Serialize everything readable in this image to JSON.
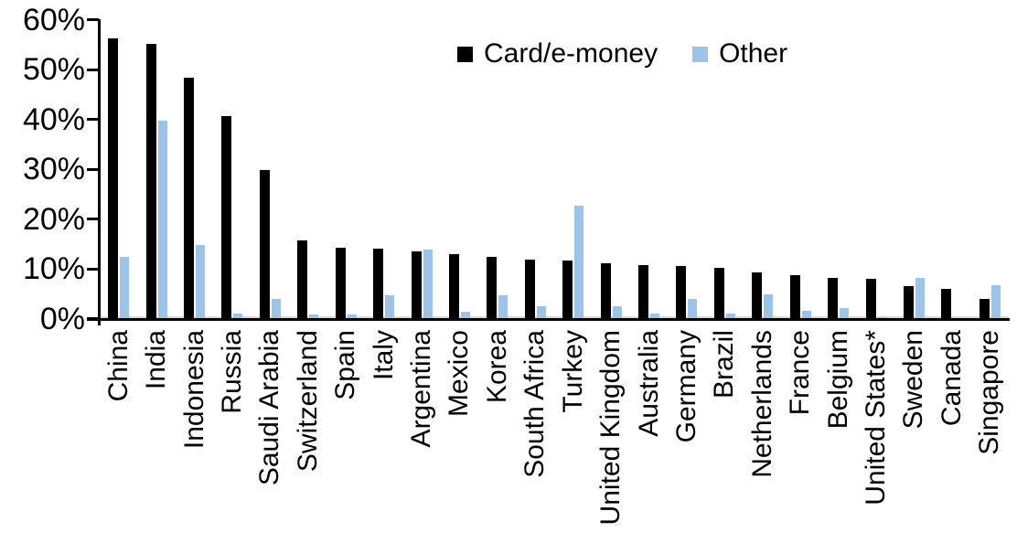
{
  "chart_data": {
    "type": "bar",
    "title": "",
    "xlabel": "",
    "ylabel": "",
    "ylim": [
      0,
      60
    ],
    "ytick_step": 10,
    "ytick_labels": [
      "0%",
      "10%",
      "20%",
      "30%",
      "40%",
      "50%",
      "60%"
    ],
    "grid": false,
    "legend_position": "top-center",
    "categories": [
      "China",
      "India",
      "Indonesia",
      "Russia",
      "Saudi Arabia",
      "Switzerland",
      "Spain",
      "Italy",
      "Argentina",
      "Mexico",
      "Korea",
      "South Africa",
      "Turkey",
      "United Kingdom",
      "Australia",
      "Germany",
      "Brazil",
      "Netherlands",
      "France",
      "Belgium",
      "United States*",
      "Sweden",
      "Canada",
      "Singapore"
    ],
    "series": [
      {
        "name": "Card/e-money",
        "color": "#000000",
        "values": [
          56.2,
          55.1,
          48.4,
          40.6,
          29.9,
          15.7,
          14.2,
          14.1,
          13.5,
          13.0,
          12.4,
          11.9,
          11.6,
          11.1,
          10.8,
          10.6,
          10.1,
          9.2,
          8.7,
          8.2,
          7.9,
          6.5,
          6.0,
          3.9
        ]
      },
      {
        "name": "Other",
        "color": "#9dc3e6",
        "values": [
          12.3,
          39.8,
          14.7,
          1.1,
          4.0,
          0.8,
          0.9,
          4.6,
          13.9,
          1.4,
          4.7,
          2.4,
          22.6,
          2.4,
          1.0,
          4.0,
          1.1,
          4.9,
          1.5,
          2.1,
          0.3,
          8.2,
          0,
          6.7
        ]
      }
    ]
  },
  "colors": {
    "axis": "#000000",
    "zero_gridline": "#d9d9d9",
    "background": "#ffffff"
  }
}
